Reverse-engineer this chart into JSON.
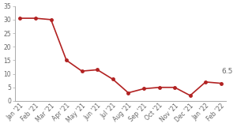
{
  "labels": [
    "Jan '21",
    "Feb '21",
    "Mar '21",
    "Apr '21",
    "May '21",
    "Jun '21",
    "Jul '21",
    "Aug '21",
    "Sep '21",
    "Oct '21",
    "Nov '21",
    "Dec '21",
    "Jan '22",
    "Feb '22"
  ],
  "values": [
    30.5,
    30.5,
    30.0,
    15.0,
    11.0,
    11.5,
    8.0,
    3.0,
    4.5,
    5.0,
    5.0,
    2.0,
    7.0,
    6.5
  ],
  "line_color": "#b22222",
  "marker": "o",
  "marker_size": 2.5,
  "line_width": 1.2,
  "ylim": [
    0,
    35
  ],
  "yticks": [
    0,
    5,
    10,
    15,
    20,
    25,
    30,
    35
  ],
  "annotation_text": "6.5",
  "annotation_index": 13,
  "tick_fontsize": 5.5,
  "annotation_fontsize": 6.5,
  "axis_color": "#aaaaaa",
  "tick_color": "#666666",
  "background_color": "#ffffff"
}
